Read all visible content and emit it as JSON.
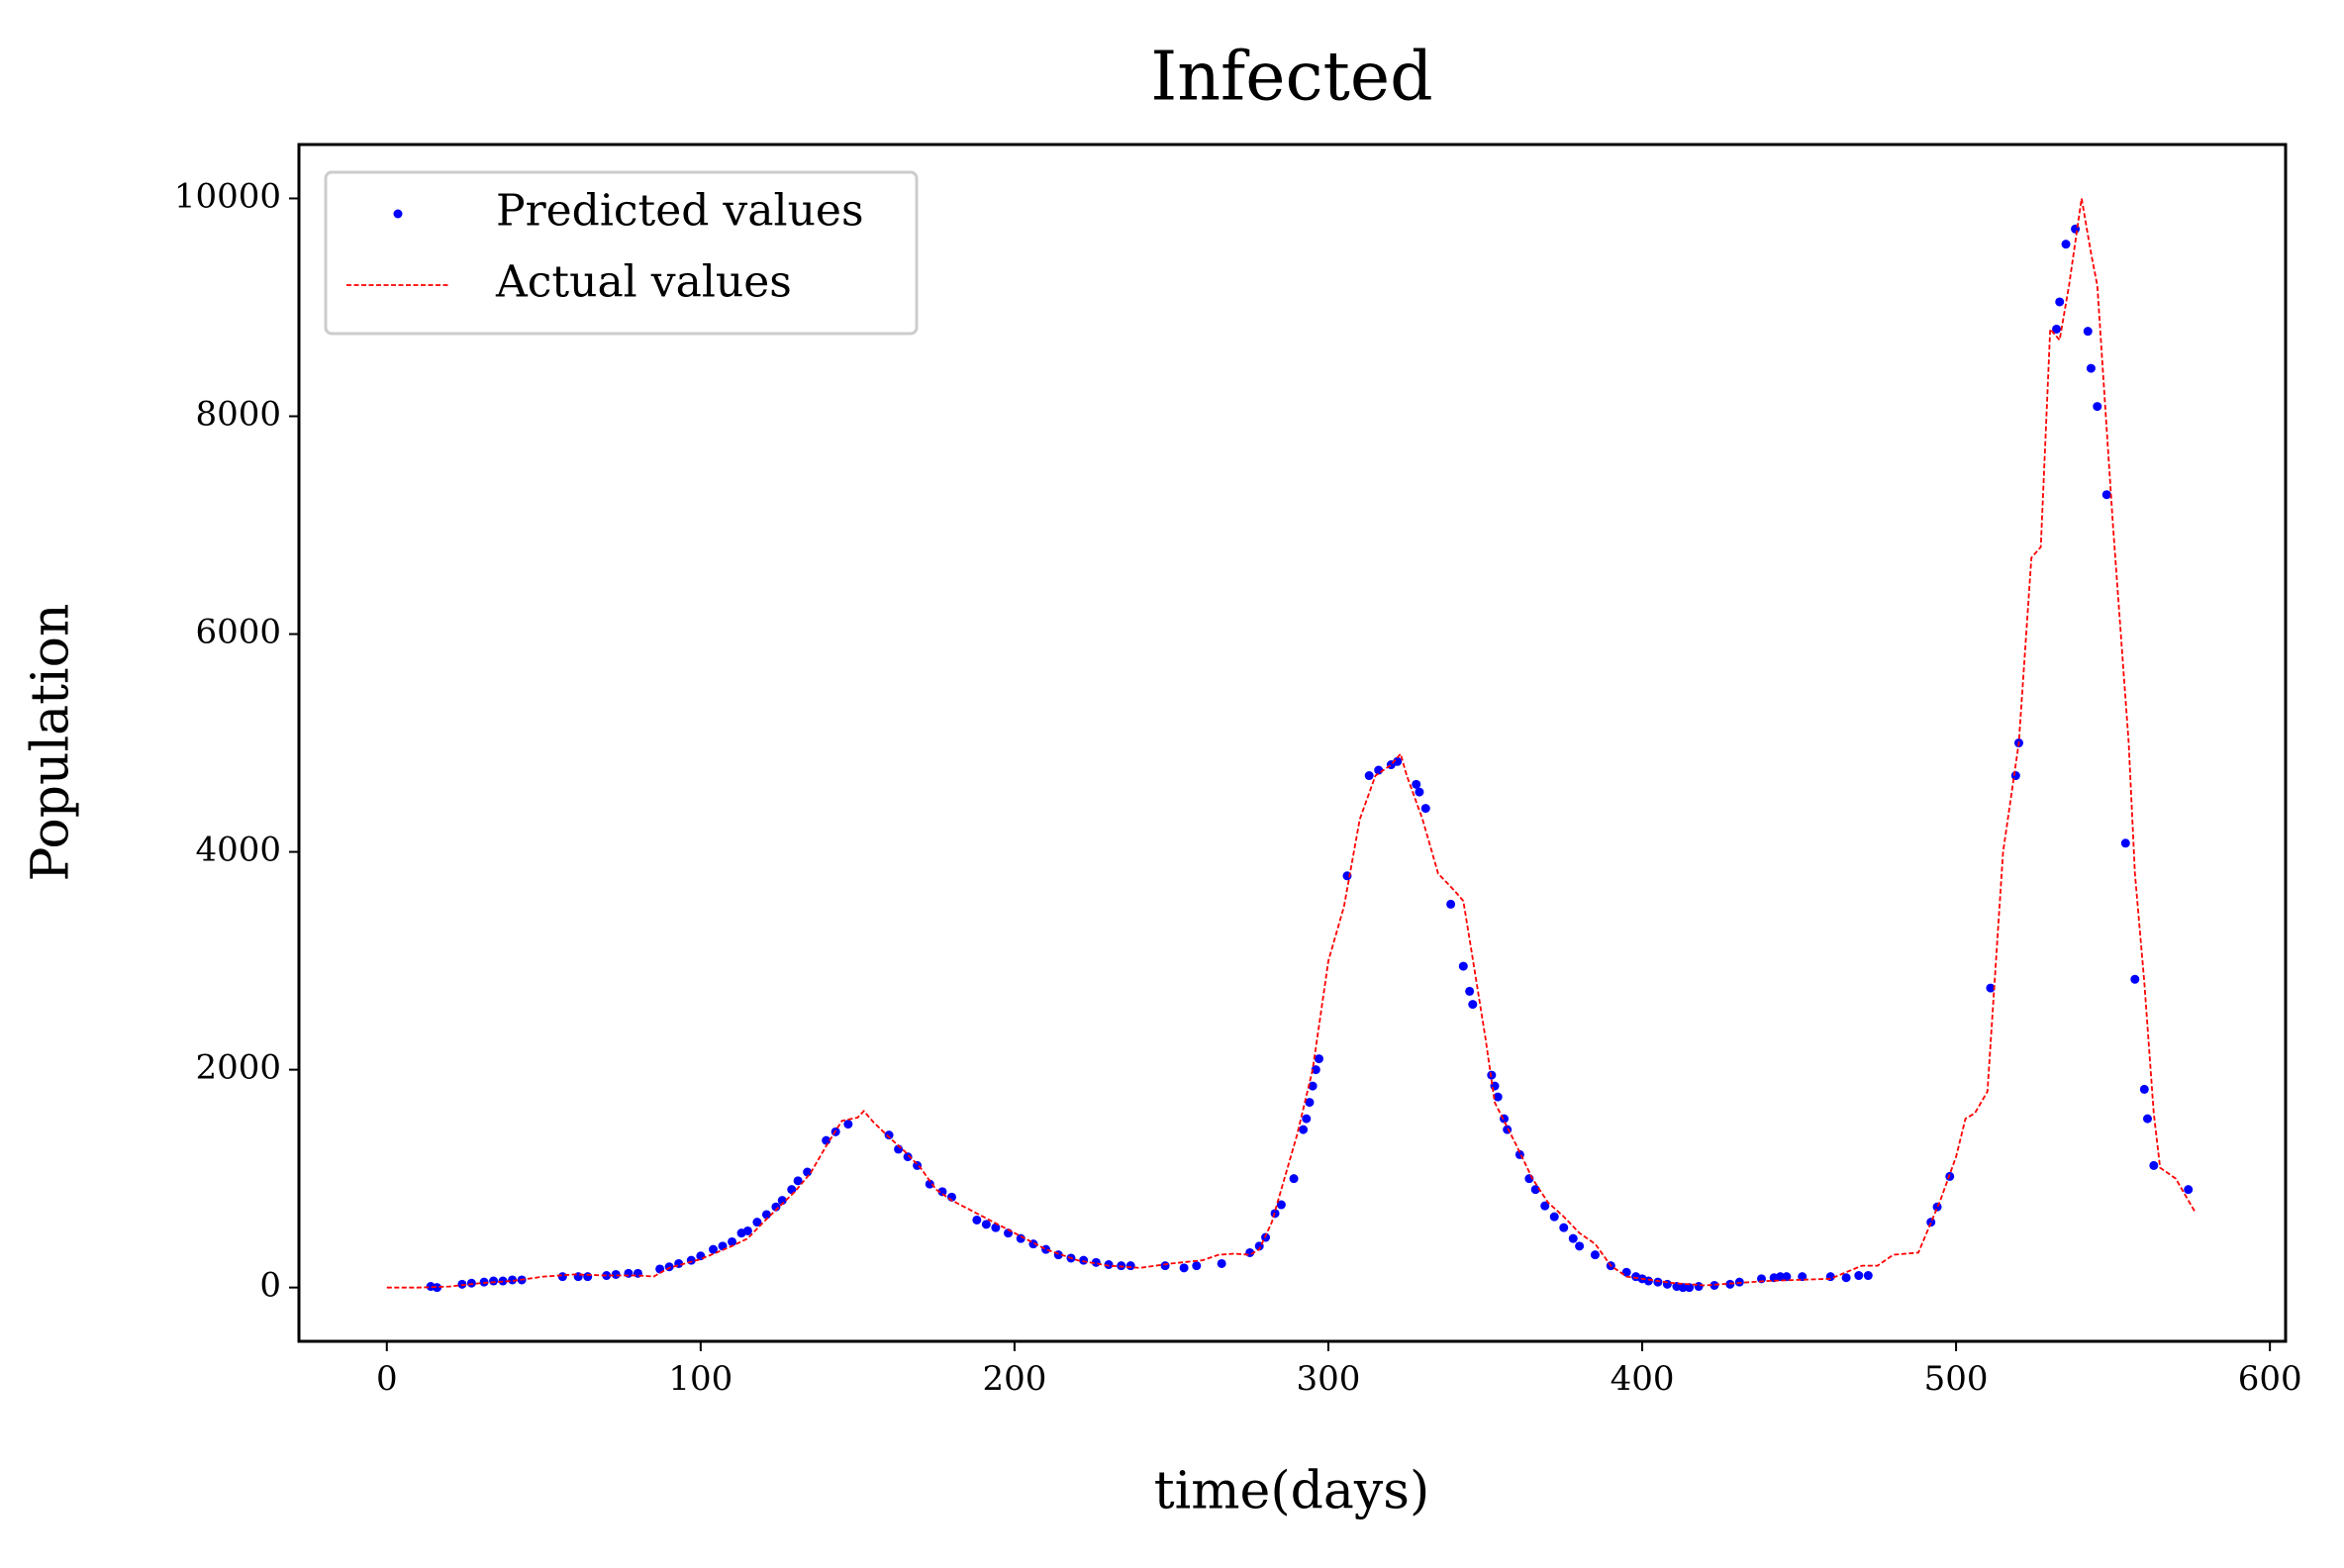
{
  "chart_data": {
    "type": "line",
    "title": "Infected",
    "xlabel": "time(days)",
    "ylabel": "Population",
    "xlim": [
      -28,
      605
    ],
    "ylim": [
      -494,
      10495
    ],
    "xticks": [
      0,
      100,
      200,
      300,
      400,
      500,
      600
    ],
    "yticks": [
      0,
      2000,
      4000,
      6000,
      8000,
      10000
    ],
    "legend": "upper left",
    "series": [
      {
        "name": "Predicted values",
        "type": "scatter",
        "color": "#0000ff",
        "x": [
          14,
          16,
          24,
          27,
          31,
          34,
          37,
          40,
          43,
          56,
          61,
          64,
          70,
          73,
          77,
          80,
          87,
          90,
          93,
          97,
          100,
          104,
          107,
          110,
          113,
          115,
          118,
          121,
          124,
          126,
          129,
          131,
          134,
          140,
          143,
          147,
          160,
          163,
          166,
          169,
          173,
          177,
          180,
          188,
          191,
          194,
          198,
          202,
          206,
          210,
          214,
          218,
          222,
          226,
          230,
          234,
          237,
          248,
          254,
          258,
          266,
          275,
          278,
          280,
          283,
          285,
          289,
          292,
          293,
          294,
          295,
          296,
          297,
          306,
          313,
          316,
          320,
          322,
          328,
          329,
          331,
          339,
          343,
          345,
          346,
          352,
          353,
          354,
          356,
          357,
          361,
          364,
          366,
          369,
          372,
          375,
          378,
          380,
          385,
          390,
          395,
          398,
          400,
          402,
          405,
          408,
          411,
          413,
          415,
          418,
          423,
          428,
          431,
          438,
          442,
          444,
          446,
          451,
          460,
          465,
          469,
          472,
          492,
          494,
          498,
          511,
          519,
          520,
          532,
          533,
          535,
          538,
          542,
          543,
          545,
          548,
          554,
          557,
          560,
          561,
          563,
          574
        ],
        "values": [
          10,
          0,
          30,
          40,
          50,
          60,
          60,
          70,
          70,
          100,
          100,
          100,
          110,
          120,
          130,
          130,
          170,
          190,
          220,
          250,
          290,
          350,
          380,
          420,
          500,
          520,
          600,
          670,
          740,
          800,
          900,
          980,
          1060,
          1350,
          1430,
          1500,
          1400,
          1270,
          1200,
          1120,
          950,
          880,
          830,
          620,
          580,
          550,
          500,
          450,
          400,
          350,
          300,
          270,
          250,
          230,
          210,
          200,
          200,
          200,
          180,
          200,
          220,
          320,
          380,
          460,
          680,
          760,
          1000,
          1450,
          1550,
          1700,
          1850,
          2000,
          2100,
          3780,
          4700,
          4750,
          4800,
          4830,
          4620,
          4550,
          4400,
          3520,
          2950,
          2720,
          2600,
          1950,
          1850,
          1750,
          1550,
          1450,
          1220,
          1000,
          900,
          750,
          650,
          550,
          450,
          380,
          300,
          200,
          140,
          100,
          80,
          60,
          50,
          30,
          10,
          0,
          0,
          10,
          20,
          30,
          50,
          80,
          90,
          100,
          100,
          100,
          100,
          90,
          110,
          110,
          600,
          740,
          1020,
          2750,
          4700,
          5000,
          8800,
          9050,
          9580,
          9720,
          8780,
          8440,
          8090,
          7280,
          4080,
          2830,
          1820,
          1550,
          1120,
          900
        ]
      },
      {
        "name": "Actual values",
        "type": "line",
        "linestyle": "dashed",
        "color": "#ff0000",
        "x": [
          0,
          10,
          20,
          30,
          40,
          50,
          60,
          70,
          80,
          85,
          90,
          100,
          110,
          115,
          120,
          130,
          135,
          140,
          145,
          150,
          152,
          155,
          160,
          165,
          170,
          175,
          180,
          190,
          200,
          210,
          220,
          230,
          240,
          250,
          260,
          265,
          270,
          275,
          278,
          282,
          285,
          290,
          295,
          300,
          305,
          310,
          315,
          320,
          323,
          325,
          330,
          335,
          340,
          343,
          345,
          350,
          353,
          360,
          365,
          370,
          375,
          380,
          385,
          390,
          395,
          400,
          410,
          420,
          430,
          440,
          450,
          460,
          470,
          475,
          480,
          488,
          495,
          500,
          503,
          506,
          510,
          515,
          520,
          524,
          527,
          530,
          533,
          536,
          540,
          543,
          545,
          550,
          555,
          557,
          560,
          563,
          565,
          570,
          573,
          576
        ],
        "values": [
          0,
          0,
          10,
          40,
          60,
          100,
          120,
          110,
          110,
          100,
          180,
          260,
          380,
          450,
          600,
          880,
          1050,
          1300,
          1530,
          1560,
          1620,
          1520,
          1380,
          1250,
          1100,
          900,
          800,
          650,
          500,
          350,
          250,
          200,
          180,
          220,
          250,
          300,
          310,
          300,
          350,
          600,
          900,
          1400,
          2000,
          3000,
          3500,
          4300,
          4700,
          4800,
          4900,
          4700,
          4300,
          3800,
          3650,
          3550,
          3200,
          2300,
          1700,
          1300,
          1000,
          780,
          650,
          500,
          400,
          200,
          100,
          80,
          40,
          20,
          40,
          60,
          70,
          80,
          200,
          200,
          300,
          320,
          800,
          1200,
          1550,
          1600,
          1800,
          4000,
          5000,
          6700,
          6800,
          8800,
          8700,
          9200,
          10000,
          9500,
          9200,
          7000,
          5000,
          3800,
          2800,
          1600,
          1100,
          1000,
          850,
          700
        ]
      }
    ]
  }
}
